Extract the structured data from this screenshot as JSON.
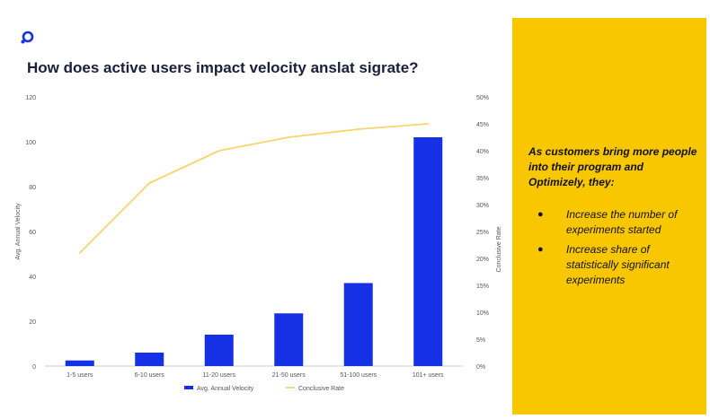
{
  "title": "How does active users impact velocity anslat sigrate?",
  "panel": {
    "heading": "As customers bring more people into their program and Optimizely, they:",
    "bullets": [
      "Increase the number of experiments started",
      "Increase share of statistically significant experiments"
    ]
  },
  "colors": {
    "bar": "#1630e6",
    "line": "#f8d46a",
    "panel": "#f9c700",
    "title": "#1c1f3b"
  },
  "chart_data": {
    "type": "bar",
    "categories": [
      "1-5 users",
      "6-10 users",
      "11-20 users",
      "21-50 users",
      "51-100 users",
      "101+ users"
    ],
    "series": [
      {
        "name": "Avg. Annual Velocity",
        "type": "bar",
        "axis": "left",
        "values": [
          2.5,
          6,
          14,
          23.5,
          37,
          102
        ]
      },
      {
        "name": "Conclusive Rate",
        "type": "line",
        "axis": "right",
        "values": [
          21,
          34,
          40,
          42.5,
          44,
          45
        ]
      }
    ],
    "ylabel": "Avg. Annual Velocity",
    "y2label": "Conclusive Rate",
    "ylim": [
      0,
      120
    ],
    "y2lim": [
      0,
      50
    ],
    "yticks": [
      0,
      20,
      40,
      60,
      80,
      100,
      120
    ],
    "y2ticks": [
      "0%",
      "5%",
      "10%",
      "15%",
      "20%",
      "25%",
      "30%",
      "35%",
      "40%",
      "45%",
      "50%"
    ],
    "grid": false,
    "legend": "bottom"
  }
}
